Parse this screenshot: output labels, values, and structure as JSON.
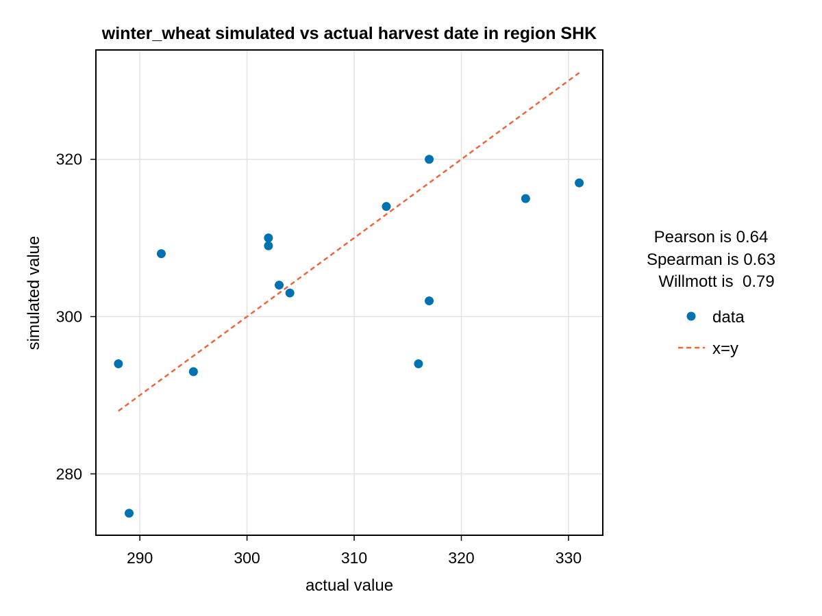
{
  "chart_data": {
    "type": "scatter",
    "title": "winter_wheat simulated vs actual harvest date in region SHK",
    "xlabel": "actual value",
    "ylabel": "simulated value",
    "xlim": [
      285.9,
      333.2
    ],
    "ylim": [
      272.2,
      333.9
    ],
    "xticks": [
      290,
      300,
      310,
      320,
      330
    ],
    "yticks": [
      280,
      300,
      320
    ],
    "grid": true,
    "series": [
      {
        "name": "data",
        "kind": "scatter",
        "color": "#0072b2",
        "points": [
          {
            "x": 288,
            "y": 294
          },
          {
            "x": 289,
            "y": 275
          },
          {
            "x": 292,
            "y": 308
          },
          {
            "x": 295,
            "y": 293
          },
          {
            "x": 302,
            "y": 310
          },
          {
            "x": 302,
            "y": 309
          },
          {
            "x": 303,
            "y": 304
          },
          {
            "x": 304,
            "y": 303
          },
          {
            "x": 313,
            "y": 314
          },
          {
            "x": 316,
            "y": 294
          },
          {
            "x": 317,
            "y": 320
          },
          {
            "x": 317,
            "y": 302
          },
          {
            "x": 326,
            "y": 315
          },
          {
            "x": 331,
            "y": 317
          }
        ]
      },
      {
        "name": "x=y",
        "kind": "dashed-line",
        "color": "#f0643c",
        "points": [
          {
            "x": 288,
            "y": 288
          },
          {
            "x": 331,
            "y": 331
          }
        ]
      }
    ],
    "stats": [
      "Pearson is 0.64",
      "Spearman is 0.63",
      "Willmott is  0.79"
    ],
    "legend_placement": "right"
  }
}
